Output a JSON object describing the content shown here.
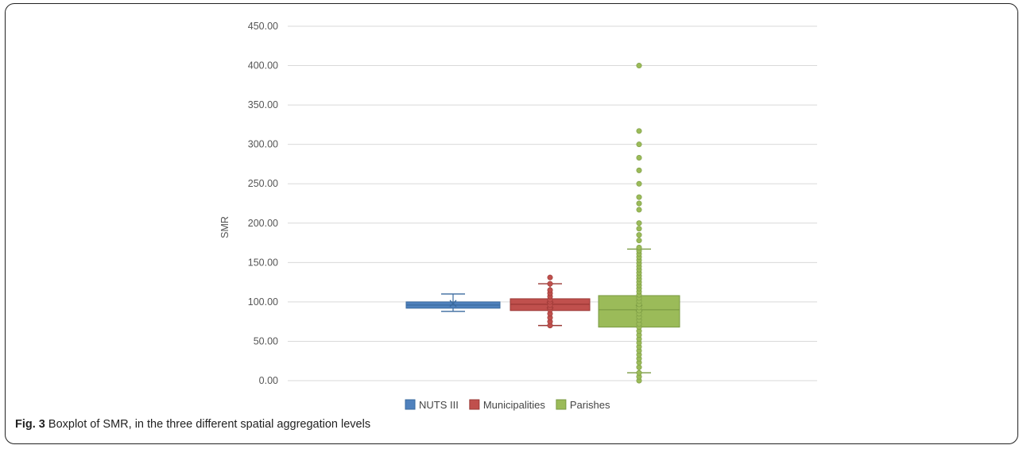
{
  "caption": {
    "label": "Fig. 3",
    "text": "Boxplot of SMR, in the three different spatial aggregation levels"
  },
  "chart_data": {
    "type": "boxplot",
    "ylabel": "SMR",
    "xlabel": "",
    "ylim": [
      0,
      450
    ],
    "yticks": [
      "0.00",
      "50.00",
      "100.00",
      "150.00",
      "200.00",
      "250.00",
      "300.00",
      "350.00",
      "400.00",
      "450.00"
    ],
    "grid": true,
    "legend_position": "bottom",
    "series": [
      {
        "name": "NUTS III",
        "color": "#4f81bd",
        "q1": 92,
        "median": 96,
        "q3": 100,
        "whisker_low": 88,
        "whisker_high": 110,
        "mean": 98,
        "points": []
      },
      {
        "name": "Municipalities",
        "color": "#c0504d",
        "q1": 89,
        "median": 97,
        "q3": 104,
        "whisker_low": 70,
        "whisker_high": 123,
        "mean": 96,
        "points": [
          70,
          75,
          80,
          85,
          90,
          93,
          96,
          100,
          103,
          107,
          111,
          115,
          123,
          131
        ]
      },
      {
        "name": "Parishes",
        "color": "#9bbb59",
        "q1": 68,
        "median": 90,
        "q3": 108,
        "whisker_low": 10,
        "whisker_high": 167,
        "mean": 92,
        "points": [
          0,
          5,
          10,
          17,
          23,
          28,
          33,
          38,
          43,
          48,
          53,
          58,
          63,
          68,
          72,
          77,
          81,
          85,
          89,
          93,
          97,
          101,
          105,
          109,
          113,
          117,
          121,
          125,
          129,
          133,
          137,
          141,
          145,
          149,
          153,
          157,
          161,
          165,
          169,
          178,
          185,
          193,
          200,
          217,
          225,
          233,
          250,
          267,
          283,
          300,
          317,
          400
        ]
      }
    ]
  }
}
